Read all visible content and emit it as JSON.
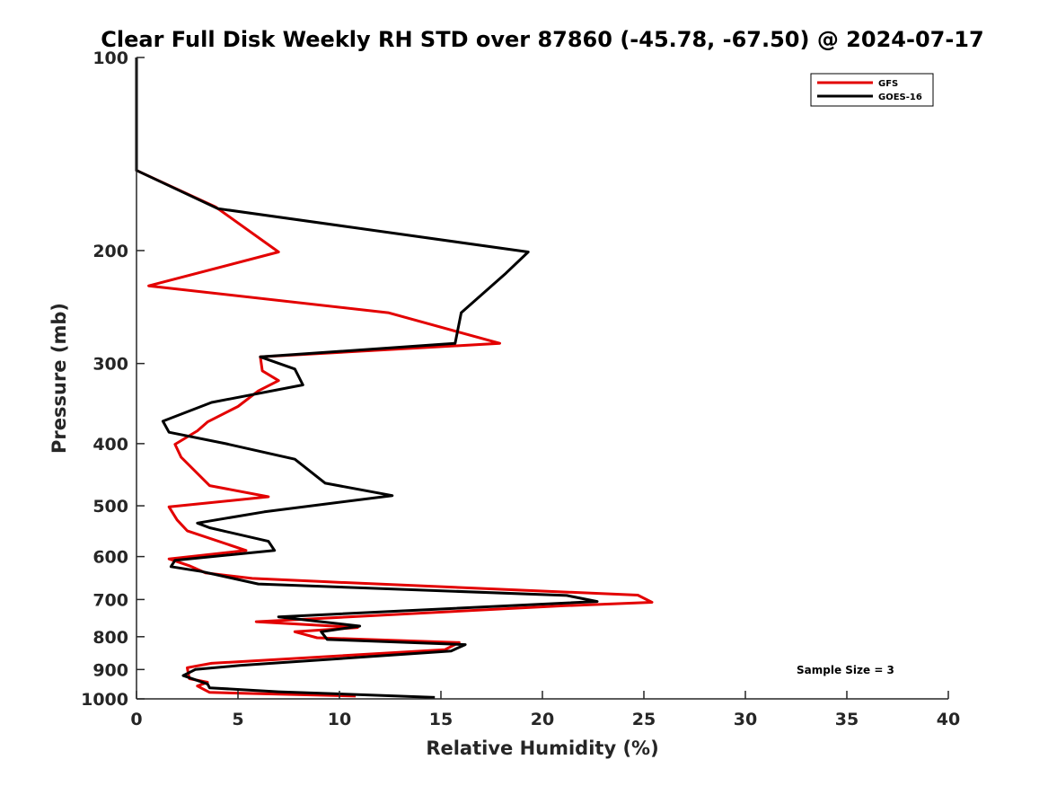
{
  "chart_data": {
    "type": "line",
    "title": "Clear Full Disk Weekly RH STD over 87860 (-45.78, -67.50) @ 2024-07-17",
    "xlabel": "Relative Humidity (%)",
    "ylabel": "Pressure (mb)",
    "xlim": [
      0,
      40
    ],
    "ylim": [
      100,
      1000
    ],
    "y_scale": "log",
    "y_reversed": true,
    "x_ticks": [
      0,
      5,
      10,
      15,
      20,
      25,
      30,
      35,
      40
    ],
    "y_ticks": [
      100,
      200,
      300,
      400,
      500,
      600,
      700,
      800,
      900,
      1000
    ],
    "grid": false,
    "legend_position": "top-right",
    "annotation": "Sample Size = 3",
    "colors": {
      "GFS": "#e30000",
      "GOES-16": "#000000"
    },
    "series": [
      {
        "name": "GFS",
        "color": "#e30000",
        "points": [
          {
            "x": 0,
            "y": 100
          },
          {
            "x": 0,
            "y": 150
          },
          {
            "x": 3.9,
            "y": 171
          },
          {
            "x": 7.0,
            "y": 201
          },
          {
            "x": 0.6,
            "y": 227
          },
          {
            "x": 12.4,
            "y": 250
          },
          {
            "x": 17.9,
            "y": 279
          },
          {
            "x": 6.1,
            "y": 293
          },
          {
            "x": 6.2,
            "y": 308
          },
          {
            "x": 7.0,
            "y": 319
          },
          {
            "x": 6.0,
            "y": 331
          },
          {
            "x": 5.0,
            "y": 350
          },
          {
            "x": 3.5,
            "y": 370
          },
          {
            "x": 3.0,
            "y": 382
          },
          {
            "x": 1.9,
            "y": 401
          },
          {
            "x": 2.2,
            "y": 420
          },
          {
            "x": 3.6,
            "y": 465
          },
          {
            "x": 6.5,
            "y": 484
          },
          {
            "x": 1.6,
            "y": 502
          },
          {
            "x": 2.0,
            "y": 526
          },
          {
            "x": 2.5,
            "y": 547
          },
          {
            "x": 5.4,
            "y": 587
          },
          {
            "x": 1.6,
            "y": 605
          },
          {
            "x": 2.6,
            "y": 620
          },
          {
            "x": 3.4,
            "y": 636
          },
          {
            "x": 5.7,
            "y": 649
          },
          {
            "x": 9.0,
            "y": 656
          },
          {
            "x": 24.7,
            "y": 689
          },
          {
            "x": 25.4,
            "y": 707
          },
          {
            "x": 21.0,
            "y": 716
          },
          {
            "x": 5.9,
            "y": 758
          },
          {
            "x": 10.9,
            "y": 774
          },
          {
            "x": 7.8,
            "y": 786
          },
          {
            "x": 8.9,
            "y": 803
          },
          {
            "x": 15.9,
            "y": 817
          },
          {
            "x": 15.2,
            "y": 838
          },
          {
            "x": 3.7,
            "y": 880
          },
          {
            "x": 2.5,
            "y": 894
          },
          {
            "x": 2.6,
            "y": 930
          },
          {
            "x": 3.5,
            "y": 942
          },
          {
            "x": 3.0,
            "y": 955
          },
          {
            "x": 3.6,
            "y": 977
          },
          {
            "x": 10.8,
            "y": 990
          }
        ]
      },
      {
        "name": "GOES-16",
        "color": "#000000",
        "points": [
          {
            "x": 0,
            "y": 100
          },
          {
            "x": 0,
            "y": 150
          },
          {
            "x": 4.0,
            "y": 172
          },
          {
            "x": 19.3,
            "y": 201
          },
          {
            "x": 18.2,
            "y": 217
          },
          {
            "x": 16.0,
            "y": 250
          },
          {
            "x": 15.7,
            "y": 279
          },
          {
            "x": 6.1,
            "y": 293
          },
          {
            "x": 7.8,
            "y": 306
          },
          {
            "x": 8.2,
            "y": 324
          },
          {
            "x": 3.7,
            "y": 345
          },
          {
            "x": 1.3,
            "y": 369
          },
          {
            "x": 1.6,
            "y": 384
          },
          {
            "x": 4.4,
            "y": 400
          },
          {
            "x": 7.8,
            "y": 423
          },
          {
            "x": 9.3,
            "y": 461
          },
          {
            "x": 12.6,
            "y": 482
          },
          {
            "x": 6.3,
            "y": 511
          },
          {
            "x": 3.0,
            "y": 532
          },
          {
            "x": 3.6,
            "y": 541
          },
          {
            "x": 6.5,
            "y": 568
          },
          {
            "x": 6.8,
            "y": 587
          },
          {
            "x": 1.9,
            "y": 608
          },
          {
            "x": 1.7,
            "y": 622
          },
          {
            "x": 3.2,
            "y": 633
          },
          {
            "x": 6.0,
            "y": 662
          },
          {
            "x": 21.2,
            "y": 690
          },
          {
            "x": 22.7,
            "y": 705
          },
          {
            "x": 7.0,
            "y": 745
          },
          {
            "x": 11.0,
            "y": 770
          },
          {
            "x": 9.1,
            "y": 786
          },
          {
            "x": 9.4,
            "y": 808
          },
          {
            "x": 16.2,
            "y": 823
          },
          {
            "x": 15.5,
            "y": 842
          },
          {
            "x": 5.1,
            "y": 887
          },
          {
            "x": 2.9,
            "y": 900
          },
          {
            "x": 2.3,
            "y": 920
          },
          {
            "x": 3.5,
            "y": 948
          },
          {
            "x": 3.6,
            "y": 961
          },
          {
            "x": 7.0,
            "y": 975
          },
          {
            "x": 10.6,
            "y": 984
          },
          {
            "x": 14.7,
            "y": 995
          }
        ]
      }
    ]
  }
}
